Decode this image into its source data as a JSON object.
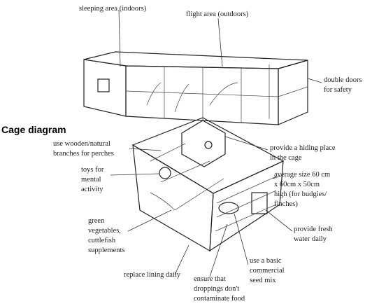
{
  "title": "Cage diagram",
  "labels": [
    {
      "lines": [
        "sleeping area (indoors)"
      ]
    },
    {
      "lines": [
        "flight area (outdoors)"
      ]
    },
    {
      "lines": [
        "double doors",
        "for safety"
      ]
    },
    {
      "lines": [
        "use wooden/natural",
        "branches for perches"
      ]
    },
    {
      "lines": [
        "provide a hiding place",
        "in the cage"
      ]
    },
    {
      "lines": [
        "toys for",
        "mental",
        "activity"
      ]
    },
    {
      "lines": [
        "average size 60 cm",
        "x 60cm x 50cm",
        "high (for budgies/",
        "finches)"
      ]
    },
    {
      "lines": [
        "green",
        "vegetables,",
        "cuttlefish",
        "supplements"
      ]
    },
    {
      "lines": [
        "provide fresh",
        "water daily"
      ]
    },
    {
      "lines": [
        "use a basic",
        "commercial",
        "seed mix"
      ]
    },
    {
      "lines": [
        "replace lining daily"
      ]
    },
    {
      "lines": [
        "ensure that",
        "droppings don't",
        "contaminate food"
      ]
    }
  ]
}
